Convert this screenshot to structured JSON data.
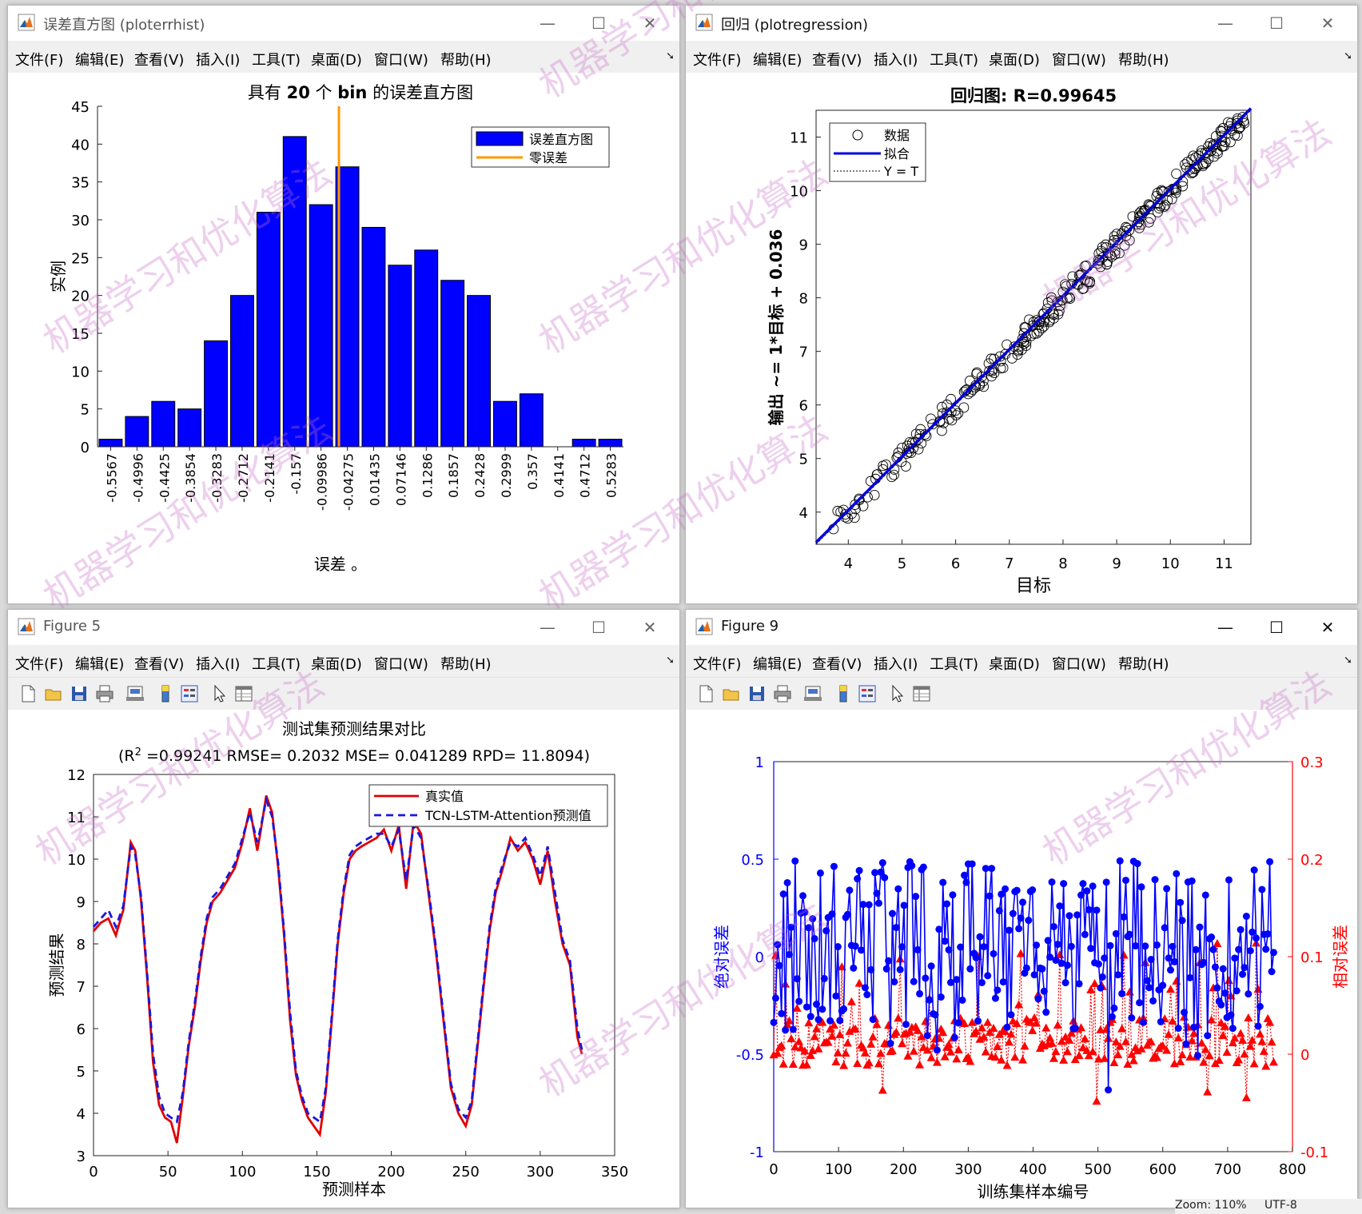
{
  "menus": [
    "文件(F)",
    "编辑(E)",
    "查看(V)",
    "插入(I)",
    "工具(T)",
    "桌面(D)",
    "窗口(W)",
    "帮助(H)"
  ],
  "window_controls": {
    "minimize": "—",
    "maximize": "☐",
    "close": "✕"
  },
  "toolbar_icons": [
    "new-file-icon",
    "open-folder-icon",
    "save-icon",
    "print-icon",
    "print-preview-icon",
    "colorbar-icon",
    "legend-icon",
    "pointer-icon",
    "property-inspector-icon"
  ],
  "watermark": "机器学习和优化算法",
  "statusbar": {
    "zoom": "Zoom: 110%",
    "encoding": "UTF-8"
  },
  "windows": {
    "hist": {
      "title": "误差直方图 (ploterrhist)"
    },
    "reg": {
      "title": "回归 (plotregression)"
    },
    "fig5": {
      "title": "Figure 5"
    },
    "fig9": {
      "title": "Figure 9"
    }
  },
  "chart_data": [
    {
      "id": "hist",
      "type": "bar",
      "title_parts": [
        "具有 ",
        "20",
        " 个 ",
        "bin",
        " 的误差直方图"
      ],
      "xlabel": "误差 。",
      "ylabel": "实例",
      "categories": [
        "-0.5567",
        "-0.4996",
        "-0.4425",
        "-0.3854",
        "-0.3283",
        "-0.2712",
        "-0.2141",
        "-0.157",
        "-0.09986",
        "-0.04275",
        "0.01435",
        "0.07146",
        "0.1286",
        "0.1857",
        "0.2428",
        "0.2999",
        "0.357",
        "0.4141",
        "0.4712",
        "0.5283"
      ],
      "values": [
        1,
        4,
        6,
        5,
        14,
        20,
        31,
        41,
        32,
        37,
        29,
        24,
        26,
        22,
        20,
        6,
        7,
        0,
        1,
        1
      ],
      "ylim": [
        0,
        45
      ],
      "yticks": [
        0,
        5,
        10,
        15,
        20,
        25,
        30,
        35,
        40,
        45
      ],
      "zero_error_bin": 9.18,
      "legend": [
        "误差直方图",
        "零误差"
      ],
      "legend_position": "top-right",
      "colors": {
        "bar": "#0000ff",
        "zero": "#ff9900"
      }
    },
    {
      "id": "reg",
      "type": "scatter",
      "title": "回归图: R=0.99645",
      "xlabel": "目标",
      "ylabel": "输出 ~= 1*目标 + 0.036",
      "xlim": [
        3.4,
        11.5
      ],
      "ylim": [
        3.4,
        11.5
      ],
      "xticks": [
        4,
        5,
        6,
        7,
        8,
        9,
        10,
        11
      ],
      "yticks": [
        4,
        5,
        6,
        7,
        8,
        9,
        10,
        11
      ],
      "fit": {
        "slope": 1,
        "intercept": 0.036
      },
      "legend": [
        "数据",
        "拟合",
        "Y = T"
      ],
      "legend_position": "top-left",
      "colors": {
        "fit": "#0000dd",
        "data": "#000000"
      }
    },
    {
      "id": "fig5",
      "type": "line",
      "title": "测试集预测结果对比",
      "subtitle_parts": [
        "(R",
        "2",
        " =0.99241 RMSE= 0.2032 MSE= 0.041289 RPD= 11.8094)"
      ],
      "xlabel": "预测样本",
      "ylabel": "预测结果",
      "xlim": [
        0,
        350
      ],
      "ylim": [
        3,
        12
      ],
      "xticks": [
        0,
        50,
        100,
        150,
        200,
        250,
        300,
        350
      ],
      "yticks": [
        3,
        4,
        5,
        6,
        7,
        8,
        9,
        10,
        11,
        12
      ],
      "series": [
        {
          "name": "真实值",
          "color": "#e00000",
          "style": "solid",
          "x": [
            0,
            5,
            10,
            15,
            20,
            25,
            28,
            32,
            36,
            40,
            44,
            48,
            52,
            56,
            60,
            64,
            68,
            72,
            76,
            80,
            85,
            90,
            95,
            100,
            105,
            110,
            112,
            116,
            120,
            124,
            128,
            132,
            136,
            140,
            144,
            148,
            152,
            156,
            160,
            164,
            168,
            172,
            176,
            180,
            185,
            190,
            195,
            200,
            205,
            210,
            215,
            220,
            225,
            230,
            235,
            240,
            245,
            250,
            254,
            258,
            262,
            266,
            270,
            275,
            280,
            285,
            290,
            295,
            300,
            305,
            310,
            315,
            320,
            325,
            328
          ],
          "y": [
            8.3,
            8.5,
            8.6,
            8.2,
            8.8,
            10.4,
            10.2,
            9.0,
            7.2,
            5.2,
            4.2,
            3.9,
            3.8,
            3.3,
            4.4,
            5.6,
            6.5,
            7.6,
            8.5,
            9.0,
            9.2,
            9.5,
            9.8,
            10.4,
            11.2,
            10.2,
            10.6,
            11.5,
            11.1,
            9.8,
            8.2,
            6.2,
            4.9,
            4.3,
            3.9,
            3.7,
            3.5,
            4.5,
            6.2,
            8.0,
            9.2,
            10.0,
            10.2,
            10.3,
            10.4,
            10.5,
            10.7,
            10.2,
            10.8,
            9.3,
            10.9,
            10.6,
            9.2,
            7.8,
            6.2,
            4.6,
            4.0,
            3.7,
            4.2,
            5.6,
            7.0,
            8.3,
            9.2,
            9.8,
            10.5,
            10.2,
            10.4,
            10.0,
            9.4,
            10.2,
            9.0,
            8.0,
            7.5,
            5.8,
            5.4
          ]
        },
        {
          "name": "TCN-LSTM-Attention预测值",
          "color": "#1818e0",
          "style": "dashed",
          "x": [
            0,
            5,
            10,
            15,
            20,
            25,
            28,
            32,
            36,
            40,
            44,
            48,
            52,
            56,
            60,
            64,
            68,
            72,
            76,
            80,
            85,
            90,
            95,
            100,
            105,
            110,
            112,
            116,
            120,
            124,
            128,
            132,
            136,
            140,
            144,
            148,
            152,
            156,
            160,
            164,
            168,
            172,
            176,
            180,
            185,
            190,
            195,
            200,
            205,
            210,
            215,
            220,
            225,
            230,
            235,
            240,
            245,
            250,
            254,
            258,
            262,
            266,
            270,
            275,
            280,
            285,
            290,
            295,
            300,
            305,
            310,
            315,
            320,
            325,
            328
          ],
          "y": [
            8.4,
            8.6,
            8.8,
            8.4,
            8.9,
            10.3,
            10.1,
            9.1,
            7.3,
            5.4,
            4.4,
            4.0,
            3.9,
            3.8,
            4.5,
            5.7,
            6.6,
            7.7,
            8.6,
            9.1,
            9.3,
            9.6,
            9.9,
            10.5,
            11.1,
            10.4,
            10.7,
            11.4,
            11.0,
            9.9,
            8.3,
            6.4,
            5.0,
            4.4,
            4.0,
            3.9,
            3.8,
            4.6,
            6.3,
            8.1,
            9.3,
            10.1,
            10.3,
            10.4,
            10.5,
            10.6,
            10.6,
            10.3,
            10.7,
            9.5,
            10.8,
            10.5,
            9.3,
            7.9,
            6.3,
            4.7,
            4.1,
            3.9,
            4.3,
            5.7,
            7.1,
            8.4,
            9.3,
            9.9,
            10.4,
            10.3,
            10.5,
            10.1,
            9.6,
            10.3,
            9.2,
            8.1,
            7.6,
            6.0,
            5.5
          ]
        }
      ],
      "legend_position": "top-right"
    },
    {
      "id": "fig9",
      "type": "line",
      "title": "",
      "xlabel": "训练集样本编号",
      "ylabel_left": "绝对误差",
      "ylabel_right": "相对误差",
      "xlim": [
        0,
        800
      ],
      "ylim_left": [
        -1,
        1
      ],
      "ylim_right": [
        -0.1,
        0.3
      ],
      "xticks": [
        0,
        100,
        200,
        300,
        400,
        500,
        600,
        700,
        800
      ],
      "yticks_left": [
        -1,
        -0.5,
        0,
        0.5,
        1
      ],
      "yticks_right": [
        -0.1,
        0,
        0.1,
        0.2,
        0.3
      ],
      "series": [
        {
          "name": "绝对误差",
          "axis": "left",
          "color": "#0000ff",
          "marker": "circle",
          "samples": 773
        },
        {
          "name": "相对误差",
          "axis": "right",
          "color": "#ff0000",
          "marker": "triangle",
          "samples": 773
        }
      ]
    }
  ]
}
